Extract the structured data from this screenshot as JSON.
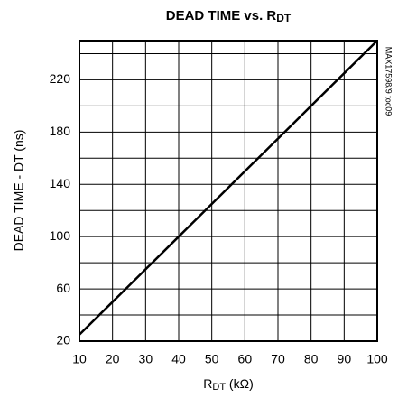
{
  "chart_data": {
    "type": "line",
    "title": [
      "DEAD TIME vs. R",
      "DT"
    ],
    "x_label": [
      "R",
      "DT",
      " (kΩ)"
    ],
    "y_label": "DEAD TIME - DT (ns)",
    "annotation": "MAX17598/9 toc09",
    "x": [
      10,
      20,
      30,
      40,
      50,
      60,
      70,
      80,
      90,
      100
    ],
    "series": [
      {
        "color": "#000000",
        "values": [
          25,
          50,
          75,
          100,
          125,
          150,
          175,
          200,
          225,
          250
        ]
      }
    ],
    "xlim": [
      10,
      100
    ],
    "xticks": [
      10,
      20,
      30,
      40,
      50,
      60,
      70,
      80,
      90,
      100
    ],
    "ylim": [
      20,
      250
    ],
    "yticks": [
      20,
      60,
      100,
      140,
      180,
      220
    ],
    "y_minor_ticks": [
      40,
      80,
      120,
      160,
      200,
      240
    ],
    "grid": true
  }
}
